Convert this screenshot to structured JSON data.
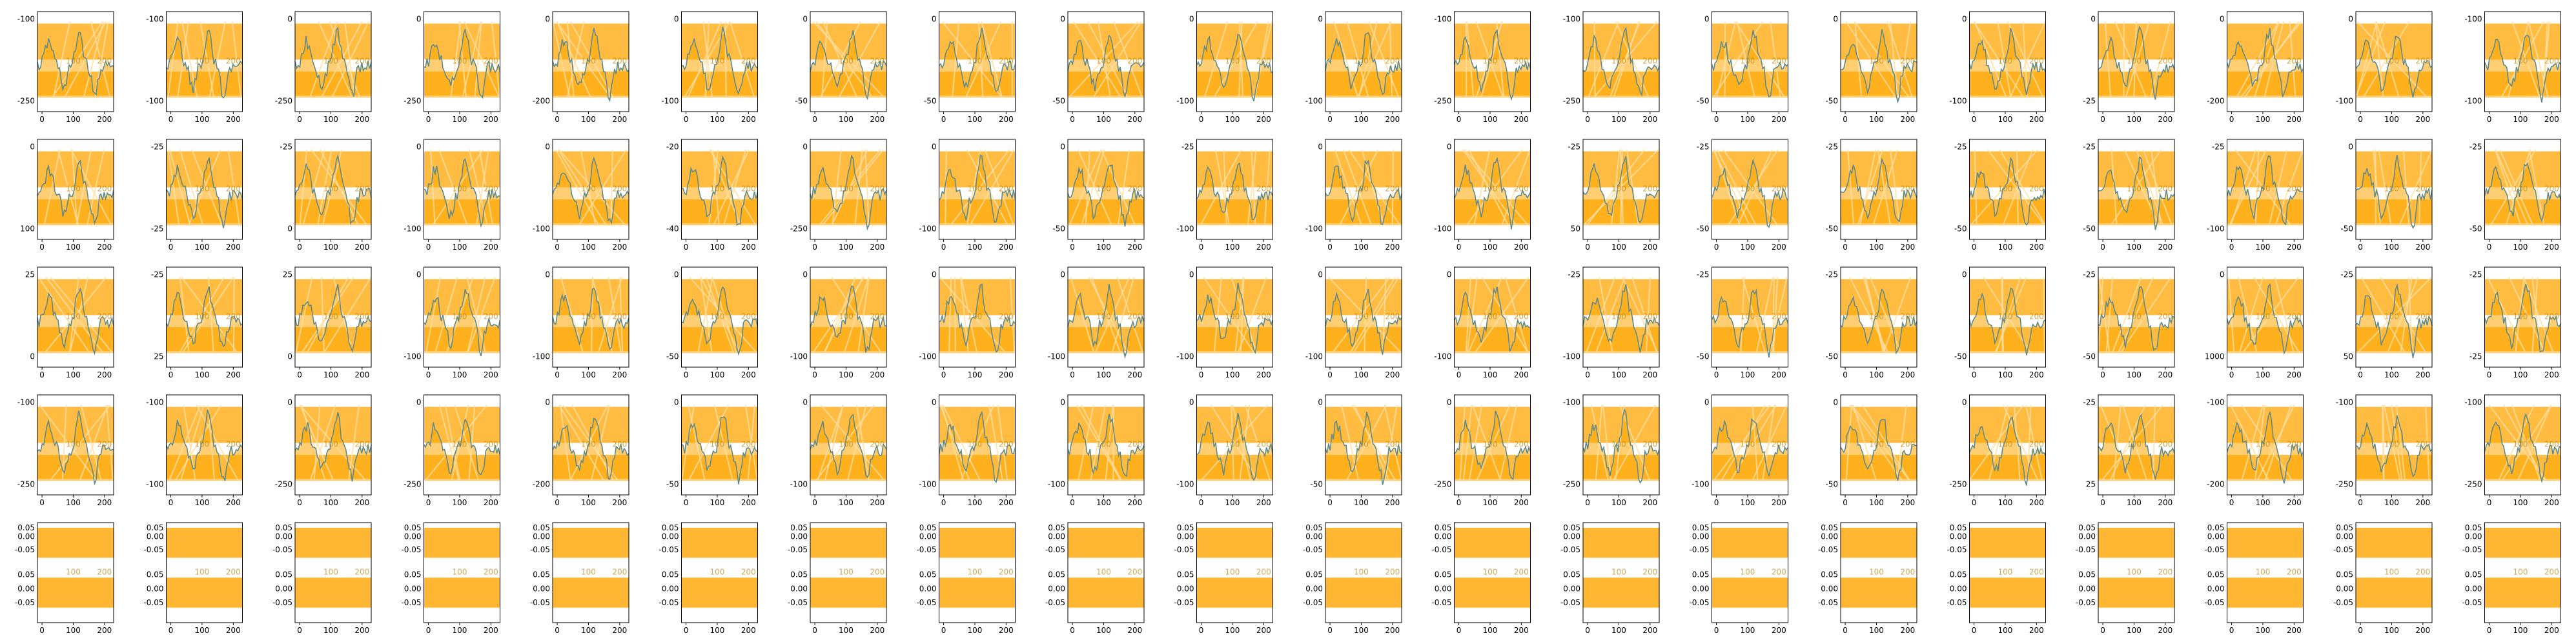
{
  "figure": {
    "rows": 5,
    "cols": 20
  },
  "colors": {
    "band": "#FFA500",
    "trace": "#5f8a8b",
    "axes": "#000000",
    "background": "#ffffff"
  },
  "chart_data": {
    "type": "line",
    "description_of_grid": "5 rows x 20 columns of small line+fill subplots",
    "x_ticks": [
      "0",
      "100",
      "200"
    ],
    "xlim": [
      0,
      240
    ],
    "row_ticks": [
      [
        [
          "-100",
          "-250"
        ],
        [
          "-100",
          "-100"
        ],
        [
          "0",
          "-250"
        ],
        [
          "0",
          "-250"
        ],
        [
          "0",
          "-200"
        ],
        [
          "0",
          "-100"
        ],
        [
          "0",
          "-50"
        ],
        [
          "0",
          "-50"
        ],
        [
          "0",
          "-50"
        ],
        [
          "0",
          "-100"
        ],
        [
          "0",
          "-100"
        ],
        [
          "-100",
          "-250"
        ],
        [
          "-100",
          "-250"
        ],
        [
          "0",
          "-50"
        ],
        [
          "0",
          "-50"
        ],
        [
          "0",
          "-100"
        ],
        [
          "0",
          "-25"
        ],
        [
          "0",
          "-200"
        ],
        [
          "0",
          "-100"
        ],
        [
          "-100",
          "-100"
        ]
      ],
      [
        [
          "0",
          "100"
        ],
        [
          "-25",
          "-25"
        ],
        [
          "-25",
          "0"
        ],
        [
          "0",
          "-100"
        ],
        [
          "0",
          "-100"
        ],
        [
          "-20",
          "-40"
        ],
        [
          "0",
          "-250"
        ],
        [
          "0",
          "-100"
        ],
        [
          "0",
          "-50"
        ],
        [
          "-25",
          "-100"
        ],
        [
          "0",
          "-100"
        ],
        [
          "0",
          "-100"
        ],
        [
          "-25",
          "50"
        ],
        [
          "-25",
          "-50"
        ],
        [
          "-25",
          "-50"
        ],
        [
          "-25",
          "-50"
        ],
        [
          "-25",
          "-50"
        ],
        [
          "-25",
          "-100"
        ],
        [
          "0",
          "-50"
        ],
        [
          "-25",
          "-50"
        ]
      ],
      [
        [
          "25",
          "0"
        ],
        [
          "-25",
          "25"
        ],
        [
          "25",
          "0"
        ],
        [
          "0",
          "-100"
        ],
        [
          "0",
          "-100"
        ],
        [
          "0",
          "-50"
        ],
        [
          "0",
          "-100"
        ],
        [
          "0",
          "-100"
        ],
        [
          "0",
          "-100"
        ],
        [
          "0",
          "-100"
        ],
        [
          "0",
          "-100"
        ],
        [
          "0",
          "-100"
        ],
        [
          "-25",
          "-100"
        ],
        [
          "-25",
          "-50"
        ],
        [
          "-25",
          "-50"
        ],
        [
          "0",
          "-50"
        ],
        [
          "-25",
          "-50"
        ],
        [
          "0",
          "1000"
        ],
        [
          "-25",
          "50"
        ],
        [
          "-25",
          "-25"
        ]
      ],
      [
        [
          "-100",
          "-250"
        ],
        [
          "-100",
          "-100"
        ],
        [
          "0",
          "-250"
        ],
        [
          "0",
          "-250"
        ],
        [
          "0",
          "-200"
        ],
        [
          "0",
          "-50"
        ],
        [
          "0",
          "-100"
        ],
        [
          "0",
          "-100"
        ],
        [
          "0",
          "-100"
        ],
        [
          "0",
          "-100"
        ],
        [
          "0",
          "-50"
        ],
        [
          "0",
          "-250"
        ],
        [
          "-100",
          "-250"
        ],
        [
          "0",
          "-100"
        ],
        [
          "0",
          "-50"
        ],
        [
          "0",
          "-250"
        ],
        [
          "-25",
          "25"
        ],
        [
          "-100",
          "-200"
        ],
        [
          "-100",
          "-250"
        ],
        [
          "-100",
          "-250"
        ]
      ],
      [
        [
          "0.05",
          "-0.05"
        ],
        [
          "0.05",
          "-0.05"
        ],
        [
          "0.05",
          "-0.05"
        ],
        [
          "0.05",
          "-0.05"
        ],
        [
          "0.05",
          "-0.05"
        ],
        [
          "0.05",
          "-0.05"
        ],
        [
          "0.05",
          "-0.05"
        ],
        [
          "0.05",
          "-0.05"
        ],
        [
          "0.05",
          "-0.05"
        ],
        [
          "0.05",
          "-0.05"
        ],
        [
          "0.05",
          "-0.05"
        ],
        [
          "0.05",
          "-0.05"
        ],
        [
          "0.05",
          "-0.05"
        ],
        [
          "0.05",
          "-0.05"
        ],
        [
          "0.05",
          "-0.05"
        ],
        [
          "0.05",
          "-0.05"
        ],
        [
          "0.05",
          "-0.05"
        ],
        [
          "0.05",
          "-0.05"
        ],
        [
          "0.05",
          "-0.05"
        ],
        [
          "0.05",
          "-0.05"
        ]
      ]
    ],
    "last_row_tick_column": [
      "0.05",
      "0.00",
      "-0.05",
      "0.05",
      "0.00",
      "-0.05"
    ],
    "flat_last_row": true
  }
}
